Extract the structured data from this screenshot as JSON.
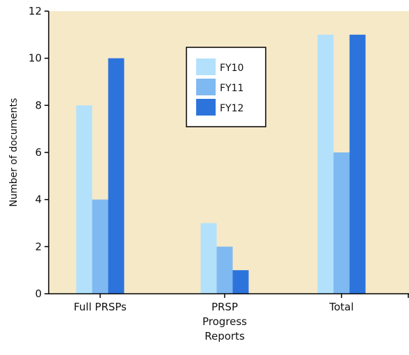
{
  "chart_data": {
    "type": "bar",
    "categories": [
      [
        "Full PRSPs"
      ],
      [
        "PRSP",
        "Progress",
        "Reports"
      ],
      [
        "Total"
      ]
    ],
    "series": [
      {
        "name": "FY10",
        "color": "#b3e1fb",
        "values": [
          8,
          3,
          11
        ]
      },
      {
        "name": "FY11",
        "color": "#7fb9f1",
        "values": [
          4,
          2,
          6
        ]
      },
      {
        "name": "FY12",
        "color": "#2c74dc",
        "values": [
          10,
          1,
          11
        ]
      }
    ],
    "ylabel": "Number of documents",
    "xlabel": "",
    "title": "",
    "ylim": [
      0,
      12
    ],
    "yticks": [
      0,
      2,
      4,
      6,
      8,
      10,
      12
    ],
    "background": "#f6e9c8",
    "grid": false,
    "legend": "top-center"
  }
}
